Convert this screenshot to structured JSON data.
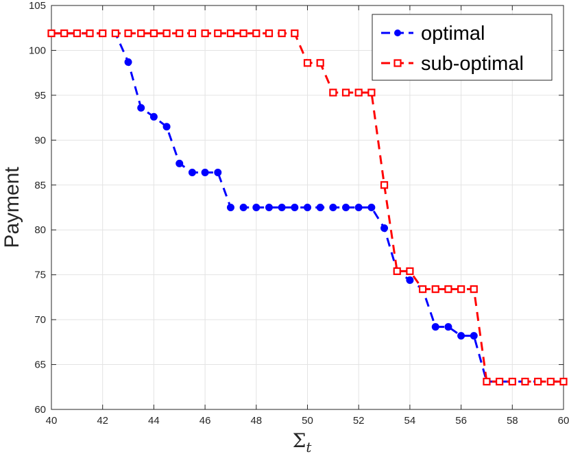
{
  "chart_data": {
    "type": "line",
    "title": "",
    "xlabel": "Σ",
    "xlabel_subscript": "t",
    "ylabel": "Payment",
    "xlim": [
      40,
      60
    ],
    "ylim": [
      60,
      105
    ],
    "xticks": [
      "40",
      "42",
      "44",
      "46",
      "48",
      "50",
      "52",
      "54",
      "56",
      "58",
      "60"
    ],
    "yticks": [
      "60",
      "65",
      "70",
      "75",
      "80",
      "85",
      "90",
      "95",
      "100",
      "105"
    ],
    "grid": true,
    "legend_position": "top-right",
    "series": [
      {
        "name": "optimal",
        "color": "#0000ff",
        "marker": "filled-circle",
        "line_style": "dashed",
        "x": [
          40,
          40.5,
          41,
          41.5,
          42,
          42.5,
          43,
          43.5,
          44,
          44.5,
          45,
          45.5,
          46,
          46.5,
          47,
          47.5,
          48,
          48.5,
          49,
          49.5,
          50,
          50.5,
          51,
          51.5,
          52,
          52.5,
          53,
          53.5,
          54,
          54.5,
          55,
          55.5,
          56,
          56.5,
          57,
          57.5,
          58,
          58.5,
          59,
          59.5,
          60
        ],
        "values": [
          101.9,
          101.9,
          101.9,
          101.9,
          101.9,
          101.9,
          98.7,
          93.6,
          92.6,
          91.5,
          87.4,
          86.4,
          86.4,
          86.4,
          82.5,
          82.5,
          82.5,
          82.5,
          82.5,
          82.5,
          82.5,
          82.5,
          82.5,
          82.5,
          82.5,
          82.5,
          80.2,
          75.4,
          74.4,
          73.4,
          69.2,
          69.2,
          68.2,
          68.2,
          63.1,
          63.1,
          63.1,
          63.1,
          63.1,
          63.1,
          63.1
        ]
      },
      {
        "name": "sub-optimal",
        "color": "#ff0000",
        "marker": "open-square",
        "line_style": "dashed",
        "x": [
          40,
          40.5,
          41,
          41.5,
          42,
          42.5,
          43,
          43.5,
          44,
          44.5,
          45,
          45.5,
          46,
          46.5,
          47,
          47.5,
          48,
          48.5,
          49,
          49.5,
          50,
          50.5,
          51,
          51.5,
          52,
          52.5,
          53,
          53.5,
          54,
          54.5,
          55,
          55.5,
          56,
          56.5,
          57,
          57.5,
          58,
          58.5,
          59,
          59.5,
          60
        ],
        "values": [
          101.9,
          101.9,
          101.9,
          101.9,
          101.9,
          101.9,
          101.9,
          101.9,
          101.9,
          101.9,
          101.9,
          101.9,
          101.9,
          101.9,
          101.9,
          101.9,
          101.9,
          101.9,
          101.9,
          101.9,
          98.6,
          98.6,
          95.3,
          95.3,
          95.3,
          95.3,
          85.0,
          75.4,
          75.4,
          73.4,
          73.4,
          73.4,
          73.4,
          73.4,
          63.1,
          63.1,
          63.1,
          63.1,
          63.1,
          63.1,
          63.1
        ]
      }
    ]
  }
}
